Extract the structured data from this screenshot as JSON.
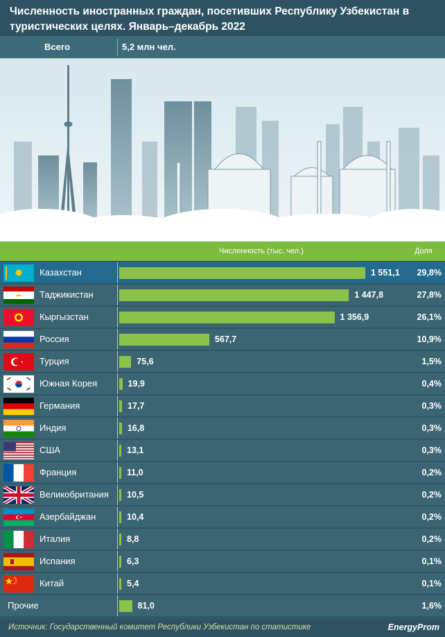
{
  "header": {
    "title": "Численность иностранных граждан, посетивших Республику Узбекистан в туристических целях. Январь–декабрь 2022"
  },
  "total": {
    "label": "Всего",
    "value": "5,2 млн чел."
  },
  "legend": {
    "count_label": "Численность (тыс. чел.)",
    "share_label": "Доля"
  },
  "colors": {
    "bar": "#8bc34a",
    "row": "#3b6572",
    "highlight_row": "#236a8d",
    "legend": "#7cbd3f"
  },
  "chart_data": {
    "type": "bar",
    "orientation": "horizontal",
    "title": "Численность иностранных граждан, посетивших Республику Узбекистан в туристических целях. Январь–декабрь 2022",
    "categories": [
      "Казахстан",
      "Таджикистан",
      "Кыргызстан",
      "Россия",
      "Турция",
      "Южная Корея",
      "Германия",
      "Индия",
      "США",
      "Франция",
      "Великобритания",
      "Азербайджан",
      "Италия",
      "Испания",
      "Китай",
      "Прочие"
    ],
    "values": [
      1551.1,
      1447.8,
      1356.9,
      567.7,
      75.6,
      19.9,
      17.7,
      16.8,
      13.1,
      11.0,
      10.5,
      10.4,
      8.8,
      6.3,
      5.4,
      81.0
    ],
    "value_labels": [
      "1 551,1",
      "1 447,8",
      "1 356,9",
      "567,7",
      "75,6",
      "19,9",
      "17,7",
      "16,8",
      "13,1",
      "11,0",
      "10,5",
      "10,4",
      "8,8",
      "6,3",
      "5,4",
      "81,0"
    ],
    "shares": [
      "29,8%",
      "27,8%",
      "26,1%",
      "10,9%",
      "1,5%",
      "0,4%",
      "0,3%",
      "0,3%",
      "0,3%",
      "0,2%",
      "0,2%",
      "0,2%",
      "0,2%",
      "0,1%",
      "0,1%",
      "1,6%"
    ],
    "flags": [
      "kazakhstan-flag",
      "tajikistan-flag",
      "kyrgyzstan-flag",
      "russia-flag",
      "turkey-flag",
      "south-korea-flag",
      "germany-flag",
      "india-flag",
      "usa-flag",
      "france-flag",
      "uk-flag",
      "azerbaijan-flag",
      "italy-flag",
      "spain-flag",
      "china-flag",
      ""
    ],
    "xlim": [
      0,
      1551.1
    ],
    "grid": false
  },
  "footer": {
    "source": "Источник: Государственный комитет Республики Узбекистан по статистике",
    "brand": "EnergyProm"
  }
}
